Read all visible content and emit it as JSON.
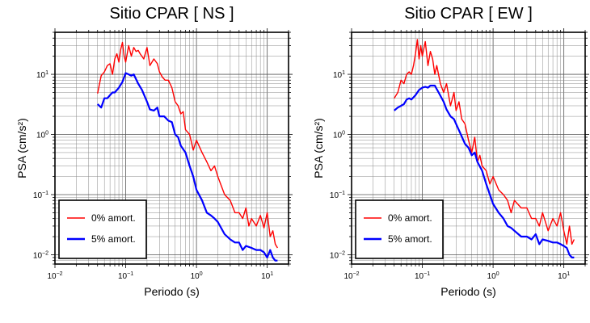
{
  "chart_data": [
    {
      "type": "line",
      "title": "Sitio CPAR [ NS ]",
      "xlabel": "Periodo (s)",
      "ylabel": "PSA (cm/s²)",
      "xscale": "log",
      "yscale": "log",
      "xlim": [
        0.01,
        20
      ],
      "ylim": [
        0.007,
        50
      ],
      "xticks": [
        {
          "value": 0.01,
          "base": "10",
          "exp": "−2"
        },
        {
          "value": 0.1,
          "base": "10",
          "exp": "−1"
        },
        {
          "value": 1,
          "base": "10",
          "exp": "0"
        },
        {
          "value": 10,
          "base": "10",
          "exp": "1"
        }
      ],
      "yticks": [
        {
          "value": 0.01,
          "base": "10",
          "exp": "−2"
        },
        {
          "value": 0.1,
          "base": "10",
          "exp": "−1"
        },
        {
          "value": 1,
          "base": "10",
          "exp": "0"
        },
        {
          "value": 10,
          "base": "10",
          "exp": "1"
        }
      ],
      "grid": true,
      "legend_position": "bottom-left",
      "series": [
        {
          "name": "0% amort.",
          "color": "#ff0000",
          "x": [
            0.04,
            0.045,
            0.05,
            0.055,
            0.06,
            0.065,
            0.07,
            0.075,
            0.08,
            0.085,
            0.09,
            0.095,
            0.1,
            0.11,
            0.12,
            0.13,
            0.14,
            0.15,
            0.16,
            0.18,
            0.2,
            0.22,
            0.25,
            0.28,
            0.3,
            0.33,
            0.36,
            0.4,
            0.45,
            0.5,
            0.55,
            0.6,
            0.65,
            0.7,
            0.8,
            0.9,
            1.0,
            1.2,
            1.4,
            1.6,
            1.8,
            2.0,
            2.5,
            3.0,
            3.5,
            4.0,
            4.5,
            5.0,
            5.5,
            6.0,
            7.0,
            8.0,
            9.0,
            10.0,
            11.0,
            12.0,
            13.0,
            14.0
          ],
          "y": [
            4.8,
            9.5,
            11,
            14,
            15,
            10,
            18,
            22,
            16,
            26,
            34,
            20,
            16,
            30,
            20,
            28,
            24,
            25,
            22,
            18,
            28,
            14,
            18,
            15,
            11,
            9,
            8,
            8,
            6,
            3.5,
            3.0,
            2.2,
            2.4,
            1.2,
            1.0,
            0.55,
            0.8,
            0.5,
            0.35,
            0.25,
            0.3,
            0.2,
            0.1,
            0.08,
            0.05,
            0.05,
            0.04,
            0.06,
            0.03,
            0.04,
            0.03,
            0.045,
            0.028,
            0.05,
            0.02,
            0.025,
            0.015,
            0.013
          ]
        },
        {
          "name": "5% amort.",
          "color": "#0000ff",
          "x": [
            0.04,
            0.045,
            0.05,
            0.055,
            0.06,
            0.065,
            0.07,
            0.08,
            0.09,
            0.1,
            0.11,
            0.12,
            0.13,
            0.15,
            0.17,
            0.2,
            0.22,
            0.25,
            0.28,
            0.3,
            0.35,
            0.4,
            0.45,
            0.5,
            0.55,
            0.6,
            0.7,
            0.8,
            0.9,
            1.0,
            1.2,
            1.4,
            1.6,
            1.8,
            2.0,
            2.5,
            3.0,
            3.5,
            4.0,
            4.5,
            5.0,
            6.0,
            7.0,
            8.0,
            9.0,
            10.0,
            11.0,
            12.0,
            13.0,
            14.0
          ],
          "y": [
            3.2,
            2.8,
            4.0,
            4.0,
            4.5,
            5.0,
            5.0,
            6.0,
            7.5,
            10.5,
            10.0,
            9.5,
            10.0,
            7.0,
            5.5,
            3.5,
            2.6,
            2.5,
            2.8,
            2.0,
            2.0,
            1.7,
            1.6,
            1.0,
            0.9,
            0.65,
            0.5,
            0.3,
            0.2,
            0.12,
            0.08,
            0.05,
            0.045,
            0.04,
            0.035,
            0.022,
            0.018,
            0.016,
            0.016,
            0.012,
            0.014,
            0.013,
            0.012,
            0.012,
            0.011,
            0.009,
            0.012,
            0.009,
            0.008,
            0.008
          ]
        }
      ]
    },
    {
      "type": "line",
      "title": "Sitio CPAR [ EW ]",
      "xlabel": "Periodo (s)",
      "ylabel": "PSA (cm/s²)",
      "xscale": "log",
      "yscale": "log",
      "xlim": [
        0.01,
        20
      ],
      "ylim": [
        0.007,
        50
      ],
      "xticks": [
        {
          "value": 0.01,
          "base": "10",
          "exp": "−2"
        },
        {
          "value": 0.1,
          "base": "10",
          "exp": "−1"
        },
        {
          "value": 1,
          "base": "10",
          "exp": "0"
        },
        {
          "value": 10,
          "base": "10",
          "exp": "1"
        }
      ],
      "yticks": [
        {
          "value": 0.01,
          "base": "10",
          "exp": "−2"
        },
        {
          "value": 0.1,
          "base": "10",
          "exp": "−1"
        },
        {
          "value": 1,
          "base": "10",
          "exp": "0"
        },
        {
          "value": 10,
          "base": "10",
          "exp": "1"
        }
      ],
      "grid": true,
      "legend_position": "bottom-left",
      "series": [
        {
          "name": "0% amort.",
          "color": "#ff0000",
          "x": [
            0.04,
            0.045,
            0.05,
            0.055,
            0.06,
            0.065,
            0.07,
            0.075,
            0.08,
            0.085,
            0.09,
            0.095,
            0.1,
            0.11,
            0.12,
            0.13,
            0.14,
            0.15,
            0.16,
            0.18,
            0.2,
            0.22,
            0.25,
            0.28,
            0.3,
            0.33,
            0.36,
            0.4,
            0.45,
            0.5,
            0.55,
            0.6,
            0.65,
            0.7,
            0.8,
            0.9,
            1.0,
            1.2,
            1.4,
            1.6,
            1.8,
            2.0,
            2.5,
            3.0,
            3.5,
            4.0,
            4.5,
            5.0,
            5.5,
            6.0,
            7.0,
            8.0,
            9.0,
            10.0,
            11.0,
            12.0,
            13.0,
            14.0
          ],
          "y": [
            4.0,
            5.0,
            8.0,
            7.0,
            10.0,
            11.0,
            10.0,
            14.0,
            22.0,
            38.0,
            18.0,
            30.0,
            20.0,
            35.0,
            14.0,
            24.0,
            18.0,
            10.0,
            14.0,
            7.0,
            5.0,
            7.0,
            3.0,
            5.0,
            2.5,
            3.5,
            1.8,
            1.5,
            0.8,
            0.5,
            0.9,
            0.35,
            0.45,
            0.3,
            0.25,
            0.15,
            0.2,
            0.12,
            0.1,
            0.08,
            0.05,
            0.08,
            0.06,
            0.06,
            0.04,
            0.04,
            0.03,
            0.05,
            0.035,
            0.025,
            0.04,
            0.03,
            0.05,
            0.025,
            0.015,
            0.03,
            0.015,
            0.018
          ]
        },
        {
          "name": "5% amort.",
          "color": "#0000ff",
          "x": [
            0.04,
            0.045,
            0.05,
            0.055,
            0.06,
            0.065,
            0.07,
            0.08,
            0.09,
            0.1,
            0.11,
            0.12,
            0.13,
            0.15,
            0.17,
            0.2,
            0.22,
            0.25,
            0.28,
            0.3,
            0.35,
            0.4,
            0.45,
            0.5,
            0.55,
            0.6,
            0.7,
            0.8,
            0.9,
            1.0,
            1.2,
            1.4,
            1.6,
            1.8,
            2.0,
            2.5,
            3.0,
            3.5,
            4.0,
            4.5,
            5.0,
            6.0,
            7.0,
            8.0,
            9.0,
            10.0,
            11.0,
            12.0,
            13.0,
            14.0
          ],
          "y": [
            2.5,
            2.8,
            3.0,
            3.2,
            3.8,
            4.0,
            3.8,
            4.5,
            5.5,
            6.0,
            6.2,
            6.0,
            6.5,
            6.5,
            5.0,
            3.5,
            2.6,
            2.0,
            1.8,
            1.5,
            1.0,
            0.7,
            0.6,
            0.45,
            0.5,
            0.35,
            0.25,
            0.15,
            0.1,
            0.07,
            0.05,
            0.04,
            0.03,
            0.028,
            0.025,
            0.02,
            0.02,
            0.018,
            0.022,
            0.015,
            0.018,
            0.017,
            0.016,
            0.016,
            0.015,
            0.014,
            0.013,
            0.01,
            0.009,
            0.009
          ]
        }
      ]
    }
  ]
}
